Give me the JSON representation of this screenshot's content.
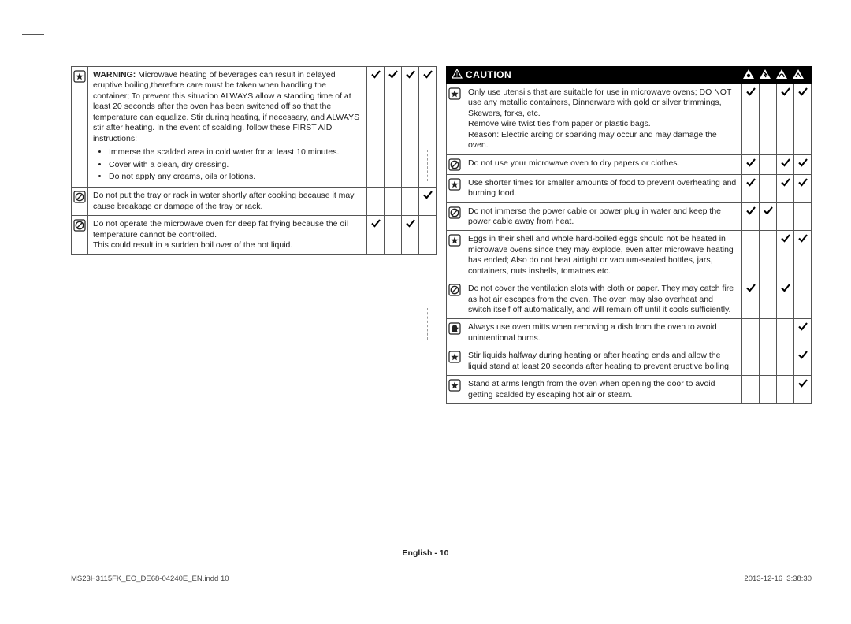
{
  "page_label": "English - 10",
  "footer_left": "MS23H3115FK_EO_DE68-04240E_EN.indd   10",
  "footer_right": "2013-12-16   ␷ 3:38:30",
  "caution_title": "CAUTION",
  "left_rows": [
    {
      "icon": "star",
      "html": "<span class=\"warn-strong\">WARNING:</span> Microwave heating of beverages can result in delayed eruptive boiling,therefore care must be taken when handling the container; To prevent this situation ALWAYS allow a standing time of at least 20 seconds after the oven has been switched off so that the temperature can equalize. Stir during heating, if necessary, and ALWAYS stir after heating. In the event of scalding, follow these FIRST AID instructions:",
      "bullets": [
        "Immerse the scalded area in cold water for at least 10 minutes.",
        "Cover with a clean, dry dressing.",
        "Do not apply any creams, oils or lotions."
      ],
      "checks": [
        true,
        true,
        true,
        true
      ]
    },
    {
      "icon": "no",
      "html": "Do not put the tray or rack in water shortly after cooking because it may cause breakage or damage of the tray or rack.",
      "checks": [
        false,
        false,
        false,
        true
      ]
    },
    {
      "icon": "no",
      "html": "Do not operate the microwave oven for deep fat frying because the oil temperature cannot be controlled.<br>This could result in a sudden boil over of the hot liquid.",
      "checks": [
        true,
        false,
        true,
        false
      ]
    }
  ],
  "right_rows": [
    {
      "icon": "star",
      "html": "Only use utensils that are suitable for use in microwave ovens; DO NOT use any metallic containers, Dinnerware with gold or silver trimmings, Skewers, forks, etc.<br>Remove wire twist ties from paper or plastic bags.<br>Reason: Electric arcing or sparking may occur and may damage the oven.",
      "checks": [
        true,
        false,
        true,
        true
      ]
    },
    {
      "icon": "no",
      "html": "Do not use your microwave oven to dry papers or clothes.",
      "checks": [
        true,
        false,
        true,
        true
      ]
    },
    {
      "icon": "star",
      "html": "Use shorter times for smaller amounts of food to prevent overheating and burning food.",
      "checks": [
        true,
        false,
        true,
        true
      ]
    },
    {
      "icon": "no",
      "html": "Do not immerse the power cable or power plug in water and keep the power cable away from heat.",
      "checks": [
        true,
        true,
        false,
        false
      ]
    },
    {
      "icon": "star",
      "html": "Eggs in their shell and whole hard-boiled eggs should not be heated in microwave ovens since they may explode, even after microwave heating has ended; Also do not heat airtight or vacuum-sealed bottles, jars, containers, nuts inshells, tomatoes etc.",
      "checks": [
        false,
        false,
        true,
        true
      ]
    },
    {
      "icon": "no",
      "html": "Do not cover the ventilation slots with cloth or paper. They may catch fire as hot air escapes from the oven. The oven may also overheat and switch itself off automatically, and will remain off until it cools sufficiently.",
      "checks": [
        true,
        false,
        true,
        false
      ]
    },
    {
      "icon": "mitt",
      "html": "Always use oven mitts when removing a dish from the oven to avoid unintentional burns.",
      "checks": [
        false,
        false,
        false,
        true
      ]
    },
    {
      "icon": "star",
      "html": "Stir liquids halfway during heating or after heating ends and allow the liquid stand at least 20 seconds after heating to prevent eruptive boiling.",
      "checks": [
        false,
        false,
        false,
        true
      ]
    },
    {
      "icon": "star",
      "html": "Stand at arms length from the oven when opening the door to avoid getting scalded by escaping hot air or steam.",
      "checks": [
        false,
        false,
        false,
        true
      ]
    }
  ]
}
